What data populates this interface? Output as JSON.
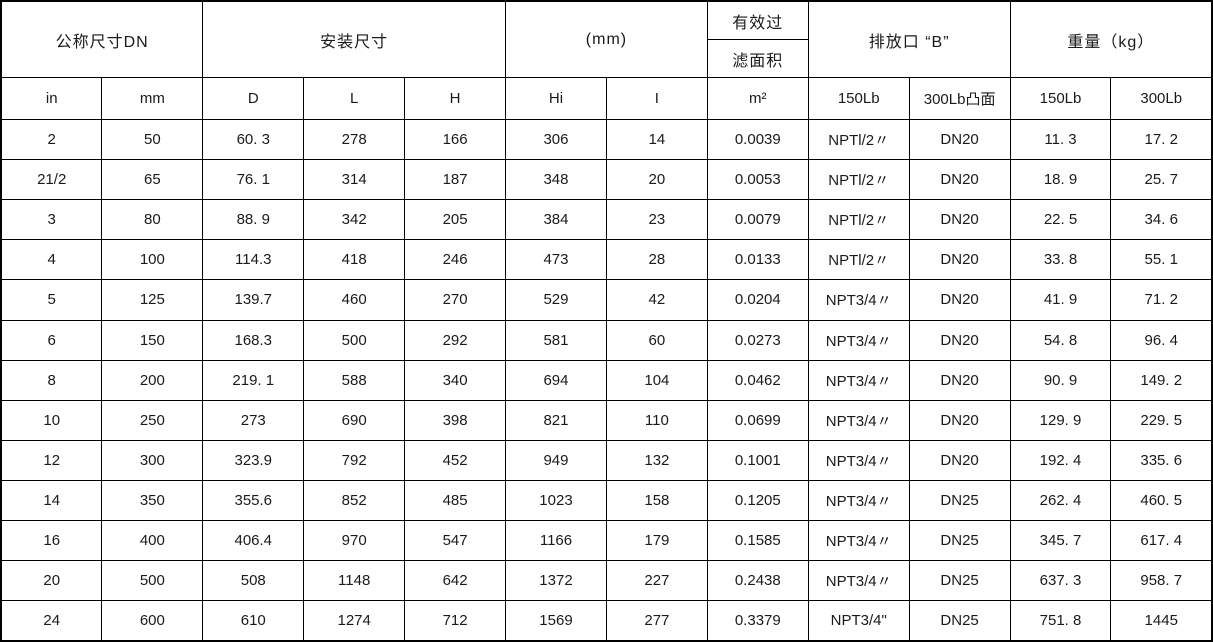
{
  "table": {
    "header_groups": {
      "nominal_size": "公称尺寸DN",
      "installation_dims": "安装尺寸",
      "mm_unit": "(mm)",
      "filter_area_line1": "有效过",
      "filter_area_line2": "滤面积",
      "drain_port": "排放口 “B”",
      "weight": "重量（kg）"
    },
    "columns": [
      "in",
      "mm",
      "D",
      "L",
      "H",
      "Hi",
      "I",
      "m²",
      "150Lb",
      "300Lb凸面",
      "150Lb",
      "300Lb"
    ],
    "rows": [
      [
        "2",
        "50",
        "60. 3",
        "278",
        "166",
        "306",
        "14",
        "0.0039",
        "NPTl/2〃",
        "DN20",
        "11. 3",
        "17. 2"
      ],
      [
        "21/2",
        "65",
        "76. 1",
        "314",
        "187",
        "348",
        "20",
        "0.0053",
        "NPTl/2〃",
        "DN20",
        "18. 9",
        "25. 7"
      ],
      [
        "3",
        "80",
        "88. 9",
        "342",
        "205",
        "384",
        "23",
        "0.0079",
        "NPTl/2〃",
        "DN20",
        "22. 5",
        "34. 6"
      ],
      [
        "4",
        "100",
        "114.3",
        "418",
        "246",
        "473",
        "28",
        "0.0133",
        "NPTl/2〃",
        "DN20",
        "33. 8",
        "55. 1"
      ],
      [
        "5",
        "125",
        "139.7",
        "460",
        "270",
        "529",
        "42",
        "0.0204",
        "NPT3/4〃",
        "DN20",
        "41. 9",
        "71. 2"
      ],
      [
        "6",
        "150",
        "168.3",
        "500",
        "292",
        "581",
        "60",
        "0.0273",
        "NPT3/4〃",
        "DN20",
        "54. 8",
        "96. 4"
      ],
      [
        "8",
        "200",
        "219. 1",
        "588",
        "340",
        "694",
        "104",
        "0.0462",
        "NPT3/4〃",
        "DN20",
        "90. 9",
        "149. 2"
      ],
      [
        "10",
        "250",
        "273",
        "690",
        "398",
        "821",
        "110",
        "0.0699",
        "NPT3/4〃",
        "DN20",
        "129. 9",
        "229. 5"
      ],
      [
        "12",
        "300",
        "323.9",
        "792",
        "452",
        "949",
        "132",
        "0.1001",
        "NPT3/4〃",
        "DN20",
        "192. 4",
        "335. 6"
      ],
      [
        "14",
        "350",
        "355.6",
        "852",
        "485",
        "1023",
        "158",
        "0.1205",
        "NPT3/4〃",
        "DN25",
        "262. 4",
        "460. 5"
      ],
      [
        "16",
        "400",
        "406.4",
        "970",
        "547",
        "1166",
        "179",
        "0.1585",
        "NPT3/4〃",
        "DN25",
        "345. 7",
        "617. 4"
      ],
      [
        "20",
        "500",
        "508",
        "1148",
        "642",
        "1372",
        "227",
        "0.2438",
        "NPT3/4〃",
        "DN25",
        "637. 3",
        "958. 7"
      ],
      [
        "24",
        "600",
        "610",
        "1274",
        "712",
        "1569",
        "277",
        "0.3379",
        "NPT3/4\"",
        "DN25",
        "751. 8",
        "1445"
      ]
    ]
  }
}
